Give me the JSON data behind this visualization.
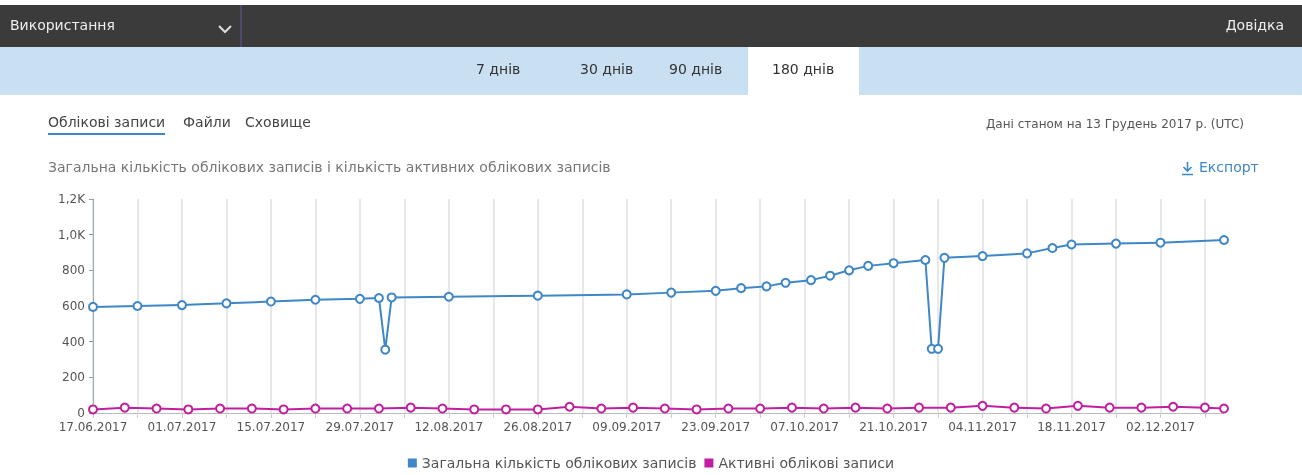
{
  "chart_data": {
    "type": "line",
    "title": "Загальна кількість облікових записів і кількість активних облікових записів",
    "annotations": [
      "Використання",
      "Довідка",
      "7 днів",
      "30 днів",
      "90 днів",
      "180 днів",
      "Облікові записи",
      "Файли",
      "Сховище",
      "Дані станом на 13 Грудень 2017 р. (UTC)",
      "Експорт"
    ],
    "series": [
      {
        "name": "Загальна кількість облікових записів",
        "color": "#3f87c6",
        "x": [
          "2017-06-17",
          "2017-06-24",
          "2017-07-01",
          "2017-07-08",
          "2017-07-15",
          "2017-07-22",
          "2017-07-29",
          "2017-08-01",
          "2017-08-02",
          "2017-08-03",
          "2017-08-12",
          "2017-08-26",
          "2017-09-09",
          "2017-09-16",
          "2017-09-23",
          "2017-09-27",
          "2017-10-01",
          "2017-10-04",
          "2017-10-08",
          "2017-10-11",
          "2017-10-14",
          "2017-10-17",
          "2017-10-21",
          "2017-10-26",
          "2017-10-27",
          "2017-10-28",
          "2017-10-29",
          "2017-11-04",
          "2017-11-11",
          "2017-11-15",
          "2017-11-18",
          "2017-11-25",
          "2017-12-02",
          "2017-12-12"
        ],
        "values": [
          595,
          600,
          605,
          615,
          625,
          635,
          640,
          645,
          355,
          648,
          652,
          658,
          665,
          675,
          685,
          700,
          710,
          730,
          745,
          770,
          800,
          825,
          840,
          858,
          360,
          360,
          870,
          880,
          895,
          925,
          945,
          950,
          955,
          970
        ]
      },
      {
        "name": "Активні облікові записи",
        "color": "#c0209f",
        "x": [
          "2017-06-17",
          "2017-06-22",
          "2017-06-27",
          "2017-07-02",
          "2017-07-07",
          "2017-07-12",
          "2017-07-17",
          "2017-07-22",
          "2017-07-27",
          "2017-08-01",
          "2017-08-06",
          "2017-08-11",
          "2017-08-16",
          "2017-08-21",
          "2017-08-26",
          "2017-08-31",
          "2017-09-05",
          "2017-09-10",
          "2017-09-15",
          "2017-09-20",
          "2017-09-25",
          "2017-09-30",
          "2017-10-05",
          "2017-10-10",
          "2017-10-15",
          "2017-10-20",
          "2017-10-25",
          "2017-10-30",
          "2017-11-04",
          "2017-11-09",
          "2017-11-14",
          "2017-11-19",
          "2017-11-24",
          "2017-11-29",
          "2017-12-04",
          "2017-12-09",
          "2017-12-12"
        ],
        "values": [
          20,
          30,
          25,
          20,
          25,
          25,
          20,
          25,
          25,
          25,
          30,
          25,
          20,
          20,
          20,
          35,
          25,
          30,
          25,
          20,
          25,
          25,
          30,
          25,
          30,
          25,
          30,
          30,
          40,
          30,
          25,
          40,
          30,
          30,
          35,
          30,
          25
        ]
      }
    ],
    "xlim": [
      "2017-06-17",
      "2017-12-12"
    ],
    "xticks": [
      {
        "value": "2017-06-17",
        "label": "17.06.2017"
      },
      {
        "value": "2017-06-24",
        "label": null
      },
      {
        "value": "2017-07-01",
        "label": "01.07.2017"
      },
      {
        "value": "2017-07-08",
        "label": null
      },
      {
        "value": "2017-07-15",
        "label": "15.07.2017"
      },
      {
        "value": "2017-07-22",
        "label": null
      },
      {
        "value": "2017-07-29",
        "label": "29.07.2017"
      },
      {
        "value": "2017-08-05",
        "label": null
      },
      {
        "value": "2017-08-12",
        "label": "12.08.2017"
      },
      {
        "value": "2017-08-19",
        "label": null
      },
      {
        "value": "2017-08-26",
        "label": "26.08.2017"
      },
      {
        "value": "2017-09-02",
        "label": null
      },
      {
        "value": "2017-09-09",
        "label": "09.09.2017"
      },
      {
        "value": "2017-09-16",
        "label": null
      },
      {
        "value": "2017-09-23",
        "label": "23.09.2017"
      },
      {
        "value": "2017-09-30",
        "label": null
      },
      {
        "value": "2017-10-07",
        "label": "07.10.2017"
      },
      {
        "value": "2017-10-14",
        "label": null
      },
      {
        "value": "2017-10-21",
        "label": "21.10.2017"
      },
      {
        "value": "2017-10-28",
        "label": null
      },
      {
        "value": "2017-11-04",
        "label": "04.11.2017"
      },
      {
        "value": "2017-11-11",
        "label": null
      },
      {
        "value": "2017-11-18",
        "label": "18.11.2017"
      },
      {
        "value": "2017-11-25",
        "label": null
      },
      {
        "value": "2017-12-02",
        "label": "02.12.2017"
      },
      {
        "value": "2017-12-09",
        "label": null
      }
    ],
    "ylim": [
      0,
      1200
    ],
    "yticks": [
      0,
      200,
      400,
      600,
      800,
      {
        "value": 1000,
        "label": "1,0K"
      },
      {
        "value": 1200,
        "label": "1,2K"
      }
    ],
    "grid": "x",
    "legend": "bottom",
    "marker": "circle",
    "line_style": "solid"
  }
}
